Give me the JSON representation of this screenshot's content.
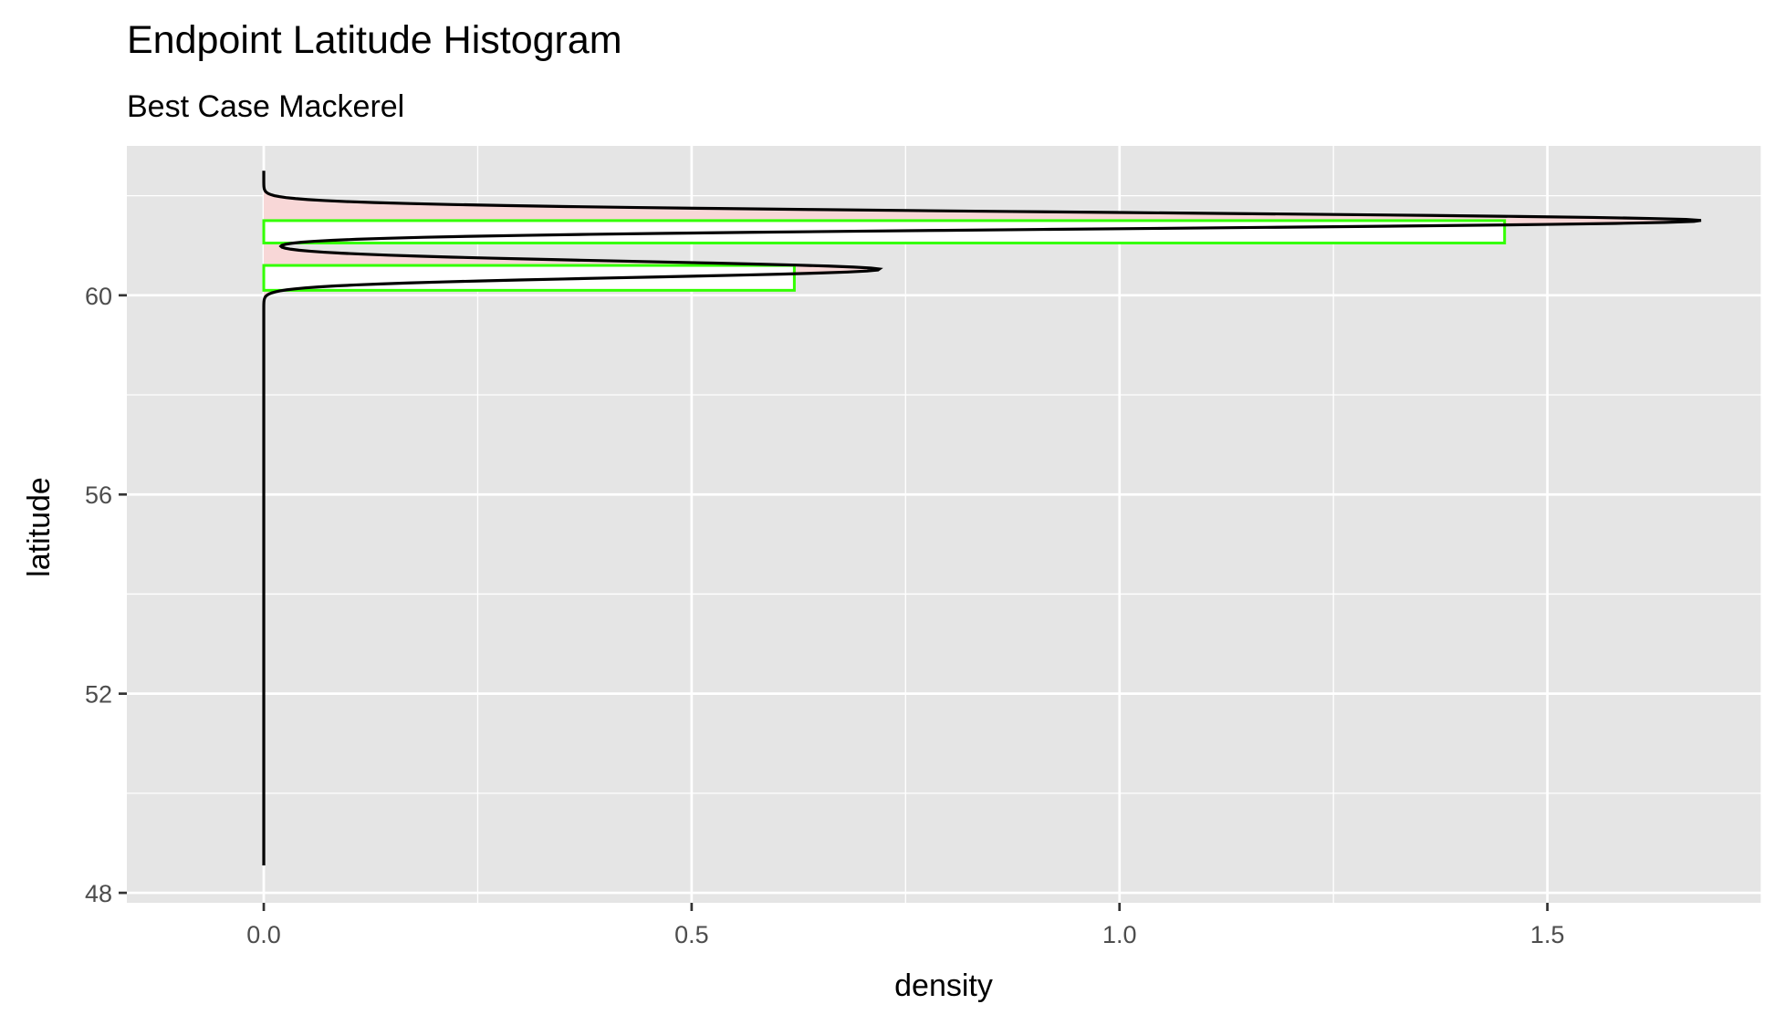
{
  "chart_data": {
    "type": "histogram",
    "title": "Endpoint Latitude Histogram",
    "subtitle": "Best Case Mackerel",
    "xlabel": "density",
    "ylabel": "latitude",
    "xlim": [
      -0.16,
      1.75
    ],
    "ylim": [
      47.8,
      63.0
    ],
    "x_ticks": [
      {
        "value": 0.0,
        "label": "0.0"
      },
      {
        "value": 0.5,
        "label": "0.5"
      },
      {
        "value": 1.0,
        "label": "1.0"
      },
      {
        "value": 1.5,
        "label": "1.5"
      }
    ],
    "y_ticks": [
      {
        "value": 48,
        "label": "48"
      },
      {
        "value": 52,
        "label": "52"
      },
      {
        "value": 56,
        "label": "56"
      },
      {
        "value": 60,
        "label": "60"
      }
    ],
    "x_minor": [
      0.25,
      0.75,
      1.25,
      1.75
    ],
    "y_minor": [
      50,
      54,
      58,
      62
    ],
    "grid": true,
    "histogram_bins": [
      {
        "lat_from": 60.1,
        "lat_to": 60.6,
        "density": 0.62
      },
      {
        "lat_from": 60.6,
        "lat_to": 61.05,
        "density": 0.0
      },
      {
        "lat_from": 61.05,
        "lat_to": 61.5,
        "density": 1.45
      },
      {
        "lat_from": 61.5,
        "lat_to": 61.95,
        "density": 0.0
      }
    ],
    "density_curve": {
      "lat_min": 48.55,
      "lat_max": 62.5,
      "peaks": [
        {
          "center": 60.52,
          "height": 0.72
        },
        {
          "center": 61.5,
          "height": 1.68
        }
      ]
    },
    "colors": {
      "panel": "#e5e5e5",
      "grid": "#ffffff",
      "bin_outline": "#33ff00",
      "bin_fill": "#ffffff",
      "density_fill": "#f8d7d7",
      "density_line": "#000000"
    }
  }
}
